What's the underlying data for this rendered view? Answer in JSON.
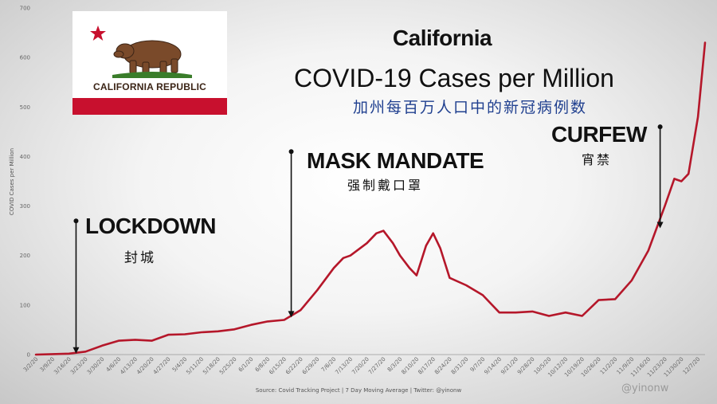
{
  "chart_data": {
    "type": "line",
    "title": "California",
    "subtitle": "COVID-19 Cases per Million",
    "subtitle_cn": "加州每百万人口中的新冠病例数",
    "ylabel": "COVID Cases per Million",
    "xlabel": "",
    "ylim": [
      0,
      700
    ],
    "yticks": [
      0,
      100,
      200,
      300,
      400,
      500,
      600,
      700
    ],
    "grid": false,
    "legend": "none",
    "x_start_date": "3/2/20",
    "x_end_date": "12/10/20",
    "x_tick_labels": [
      "3/2/20",
      "3/9/20",
      "3/16/20",
      "3/23/20",
      "3/30/20",
      "4/6/20",
      "4/13/20",
      "4/20/20",
      "4/27/20",
      "5/4/20",
      "5/11/20",
      "5/18/20",
      "5/25/20",
      "6/1/20",
      "6/8/20",
      "6/15/20",
      "6/22/20",
      "6/29/20",
      "7/6/20",
      "7/13/20",
      "7/20/20",
      "7/27/20",
      "8/3/20",
      "8/10/20",
      "8/17/20",
      "8/24/20",
      "8/31/20",
      "9/7/20",
      "9/14/20",
      "9/21/20",
      "9/28/20",
      "10/5/20",
      "10/12/20",
      "10/19/20",
      "10/26/20",
      "11/2/20",
      "11/9/20",
      "11/16/20",
      "11/23/20",
      "11/30/20",
      "12/7/20"
    ],
    "series": [
      {
        "points": [
          [
            "3/2/20",
            0
          ],
          [
            "3/9/20",
            1
          ],
          [
            "3/16/20",
            2
          ],
          [
            "3/23/20",
            6
          ],
          [
            "3/30/20",
            18
          ],
          [
            "4/6/20",
            28
          ],
          [
            "4/13/20",
            30
          ],
          [
            "4/20/20",
            28
          ],
          [
            "4/27/20",
            40
          ],
          [
            "5/4/20",
            41
          ],
          [
            "5/11/20",
            45
          ],
          [
            "5/18/20",
            47
          ],
          [
            "5/25/20",
            51
          ],
          [
            "6/1/20",
            60
          ],
          [
            "6/8/20",
            67
          ],
          [
            "6/15/20",
            70
          ],
          [
            "6/22/20",
            90
          ],
          [
            "6/29/20",
            130
          ],
          [
            "7/6/20",
            175
          ],
          [
            "7/10/20",
            195
          ],
          [
            "7/13/20",
            200
          ],
          [
            "7/20/20",
            225
          ],
          [
            "7/24/20",
            245
          ],
          [
            "7/27/20",
            250
          ],
          [
            "7/31/20",
            225
          ],
          [
            "8/3/20",
            200
          ],
          [
            "8/7/20",
            175
          ],
          [
            "8/10/20",
            160
          ],
          [
            "8/14/20",
            220
          ],
          [
            "8/17/20",
            245
          ],
          [
            "8/20/20",
            215
          ],
          [
            "8/24/20",
            155
          ],
          [
            "8/31/20",
            140
          ],
          [
            "9/7/20",
            120
          ],
          [
            "9/14/20",
            85
          ],
          [
            "9/21/20",
            85
          ],
          [
            "9/28/20",
            87
          ],
          [
            "10/5/20",
            78
          ],
          [
            "10/12/20",
            85
          ],
          [
            "10/19/20",
            78
          ],
          [
            "10/26/20",
            110
          ],
          [
            "11/2/20",
            112
          ],
          [
            "11/9/20",
            150
          ],
          [
            "11/16/20",
            210
          ],
          [
            "11/23/20",
            300
          ],
          [
            "11/27/20",
            355
          ],
          [
            "11/30/20",
            350
          ],
          [
            "12/3/20",
            365
          ],
          [
            "12/7/20",
            480
          ],
          [
            "12/10/20",
            630
          ]
        ],
        "color": "#b5172a"
      }
    ],
    "annotations": [
      {
        "label": "LOCKDOWN",
        "label_cn": "封城",
        "date": "3/19/20"
      },
      {
        "label": "MASK MANDATE",
        "label_cn": "强制戴口罩",
        "date": "6/18/20"
      },
      {
        "label": "CURFEW",
        "label_cn": "宵禁",
        "date": "11/21/20"
      }
    ],
    "source": "Source: Covid Tracking Project | 7 Day Moving Average | Twitter: @yinonw"
  },
  "flag": {
    "text": "CALIFORNIA REPUBLIC"
  },
  "watermark": "@yinonw",
  "colors": {
    "line": "#b5172a",
    "flag_red": "#c8102e",
    "title_cn": "#1f3f8f"
  }
}
